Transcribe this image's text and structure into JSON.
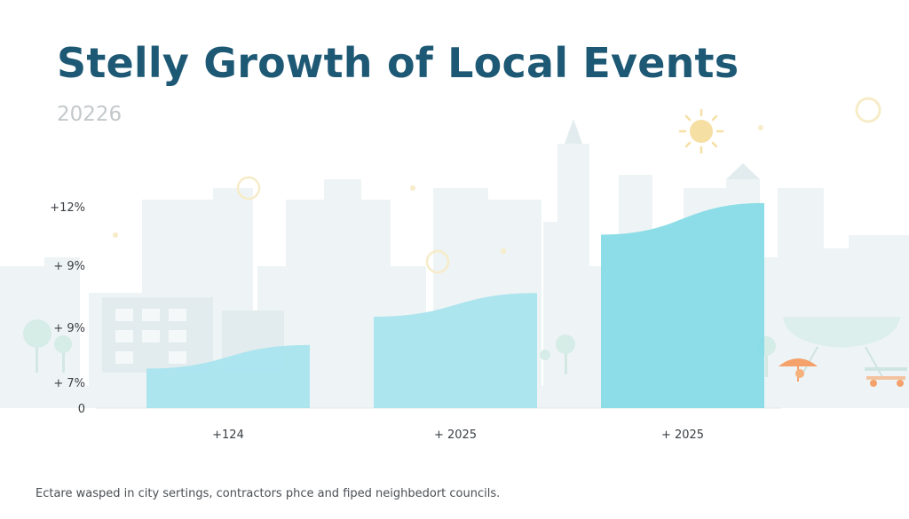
{
  "chart_data": {
    "type": "area",
    "title": "Stelly Growth of Local Events",
    "subtitle": "20226",
    "caption": "Ectare wasped in city sertings, contractors phce and fiped neighbedort councils.",
    "categories": [
      "+124",
      "+ 2025",
      "+ 2025"
    ],
    "y_tick_labels": [
      "0",
      "+ 7%",
      "+ 9%",
      "+ 9%",
      "+12%"
    ],
    "series": [
      {
        "values": [
          [
            2.5,
            4.0
          ],
          [
            5.8,
            7.3
          ],
          [
            11.0,
            13.0
          ]
        ]
      }
    ],
    "ylim": [
      0,
      13.5
    ],
    "grid": false,
    "legend": "none",
    "colors": {
      "title": "#1d5874",
      "bar": "#a9e4ee",
      "bar_strong": "#86dbe6",
      "axis_text": "#3a3f44",
      "city_fill": "#eef4f5",
      "sun": "#f6dfa3",
      "umbrella": "#f4a16b"
    },
    "icons": [
      "city-skyline-illustration",
      "sun-icon",
      "tree-icon",
      "picnic-umbrella-icon",
      "bench-icon"
    ]
  }
}
